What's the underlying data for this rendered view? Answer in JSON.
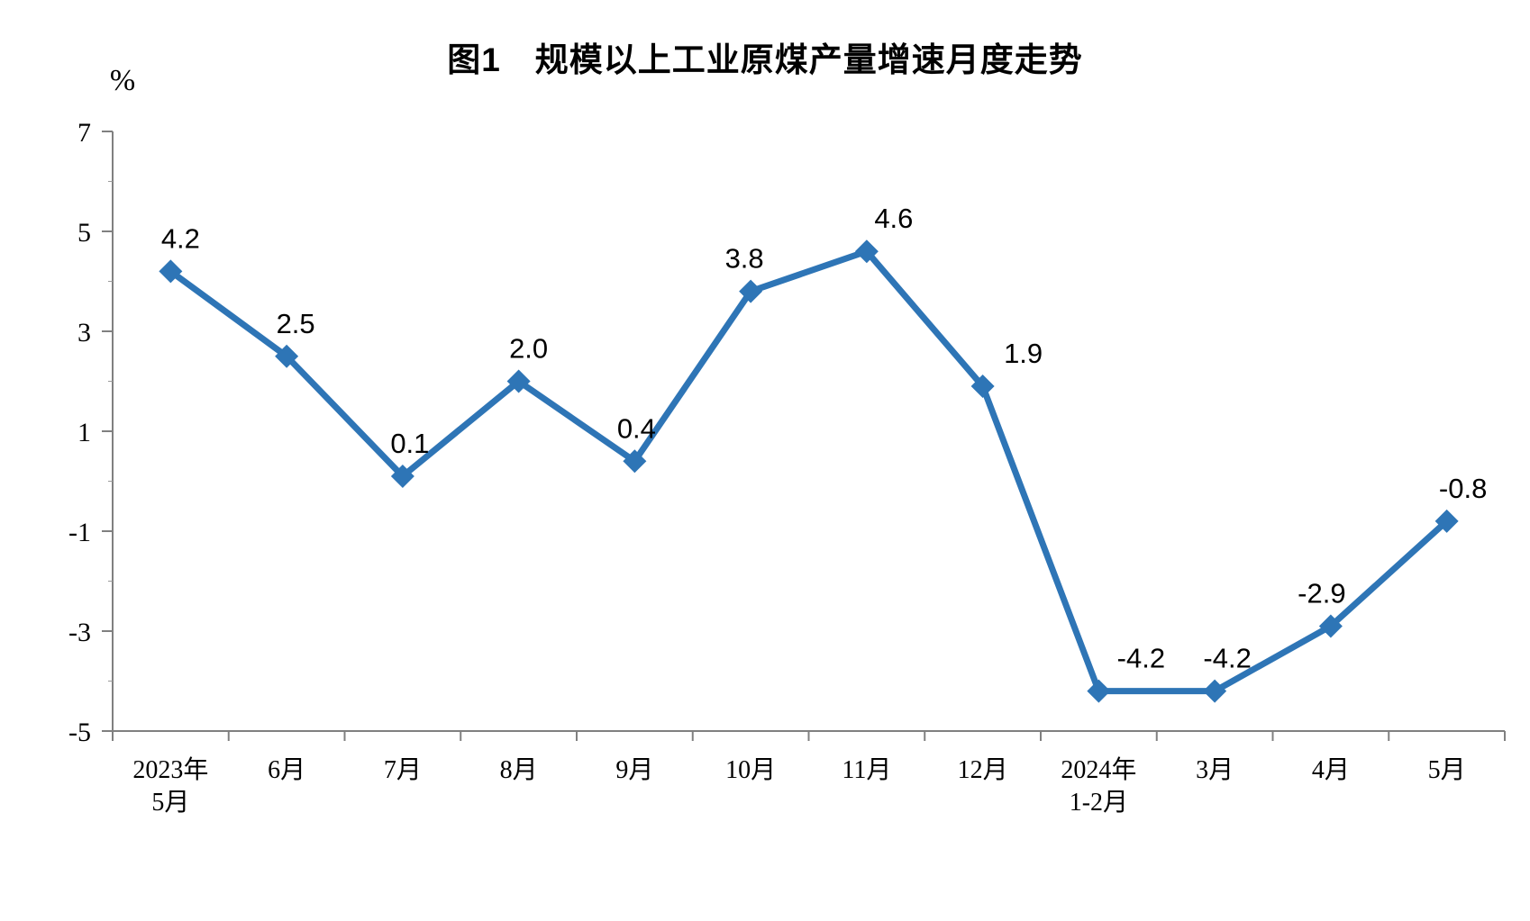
{
  "chart_data": {
    "type": "line",
    "title": "图1　规模以上工业原煤产量增速月度走势",
    "unit_label": "%",
    "categories": [
      "2023年\n5月",
      "6月",
      "7月",
      "8月",
      "9月",
      "10月",
      "11月",
      "12月",
      "2024年\n1-2月",
      "3月",
      "4月",
      "5月"
    ],
    "values": [
      4.2,
      2.5,
      0.1,
      2.0,
      0.4,
      3.8,
      4.6,
      1.9,
      -4.2,
      -4.2,
      -2.9,
      -0.8
    ],
    "labels": [
      "4.2",
      "2.5",
      "0.1",
      "2.0",
      "0.4",
      "3.8",
      "4.6",
      "1.9",
      "-4.2",
      "-4.2",
      "-2.9",
      "-0.8"
    ],
    "ylim": [
      -5,
      7
    ],
    "yticks": [
      7,
      5,
      3,
      1,
      -1,
      -3,
      -5
    ],
    "yminorticks": [
      6,
      4,
      2,
      0,
      -2,
      -4
    ],
    "grid": false,
    "legend": "none",
    "line_color": "#2E75B6",
    "axis_color": "#808080",
    "text_color": "#000000"
  }
}
